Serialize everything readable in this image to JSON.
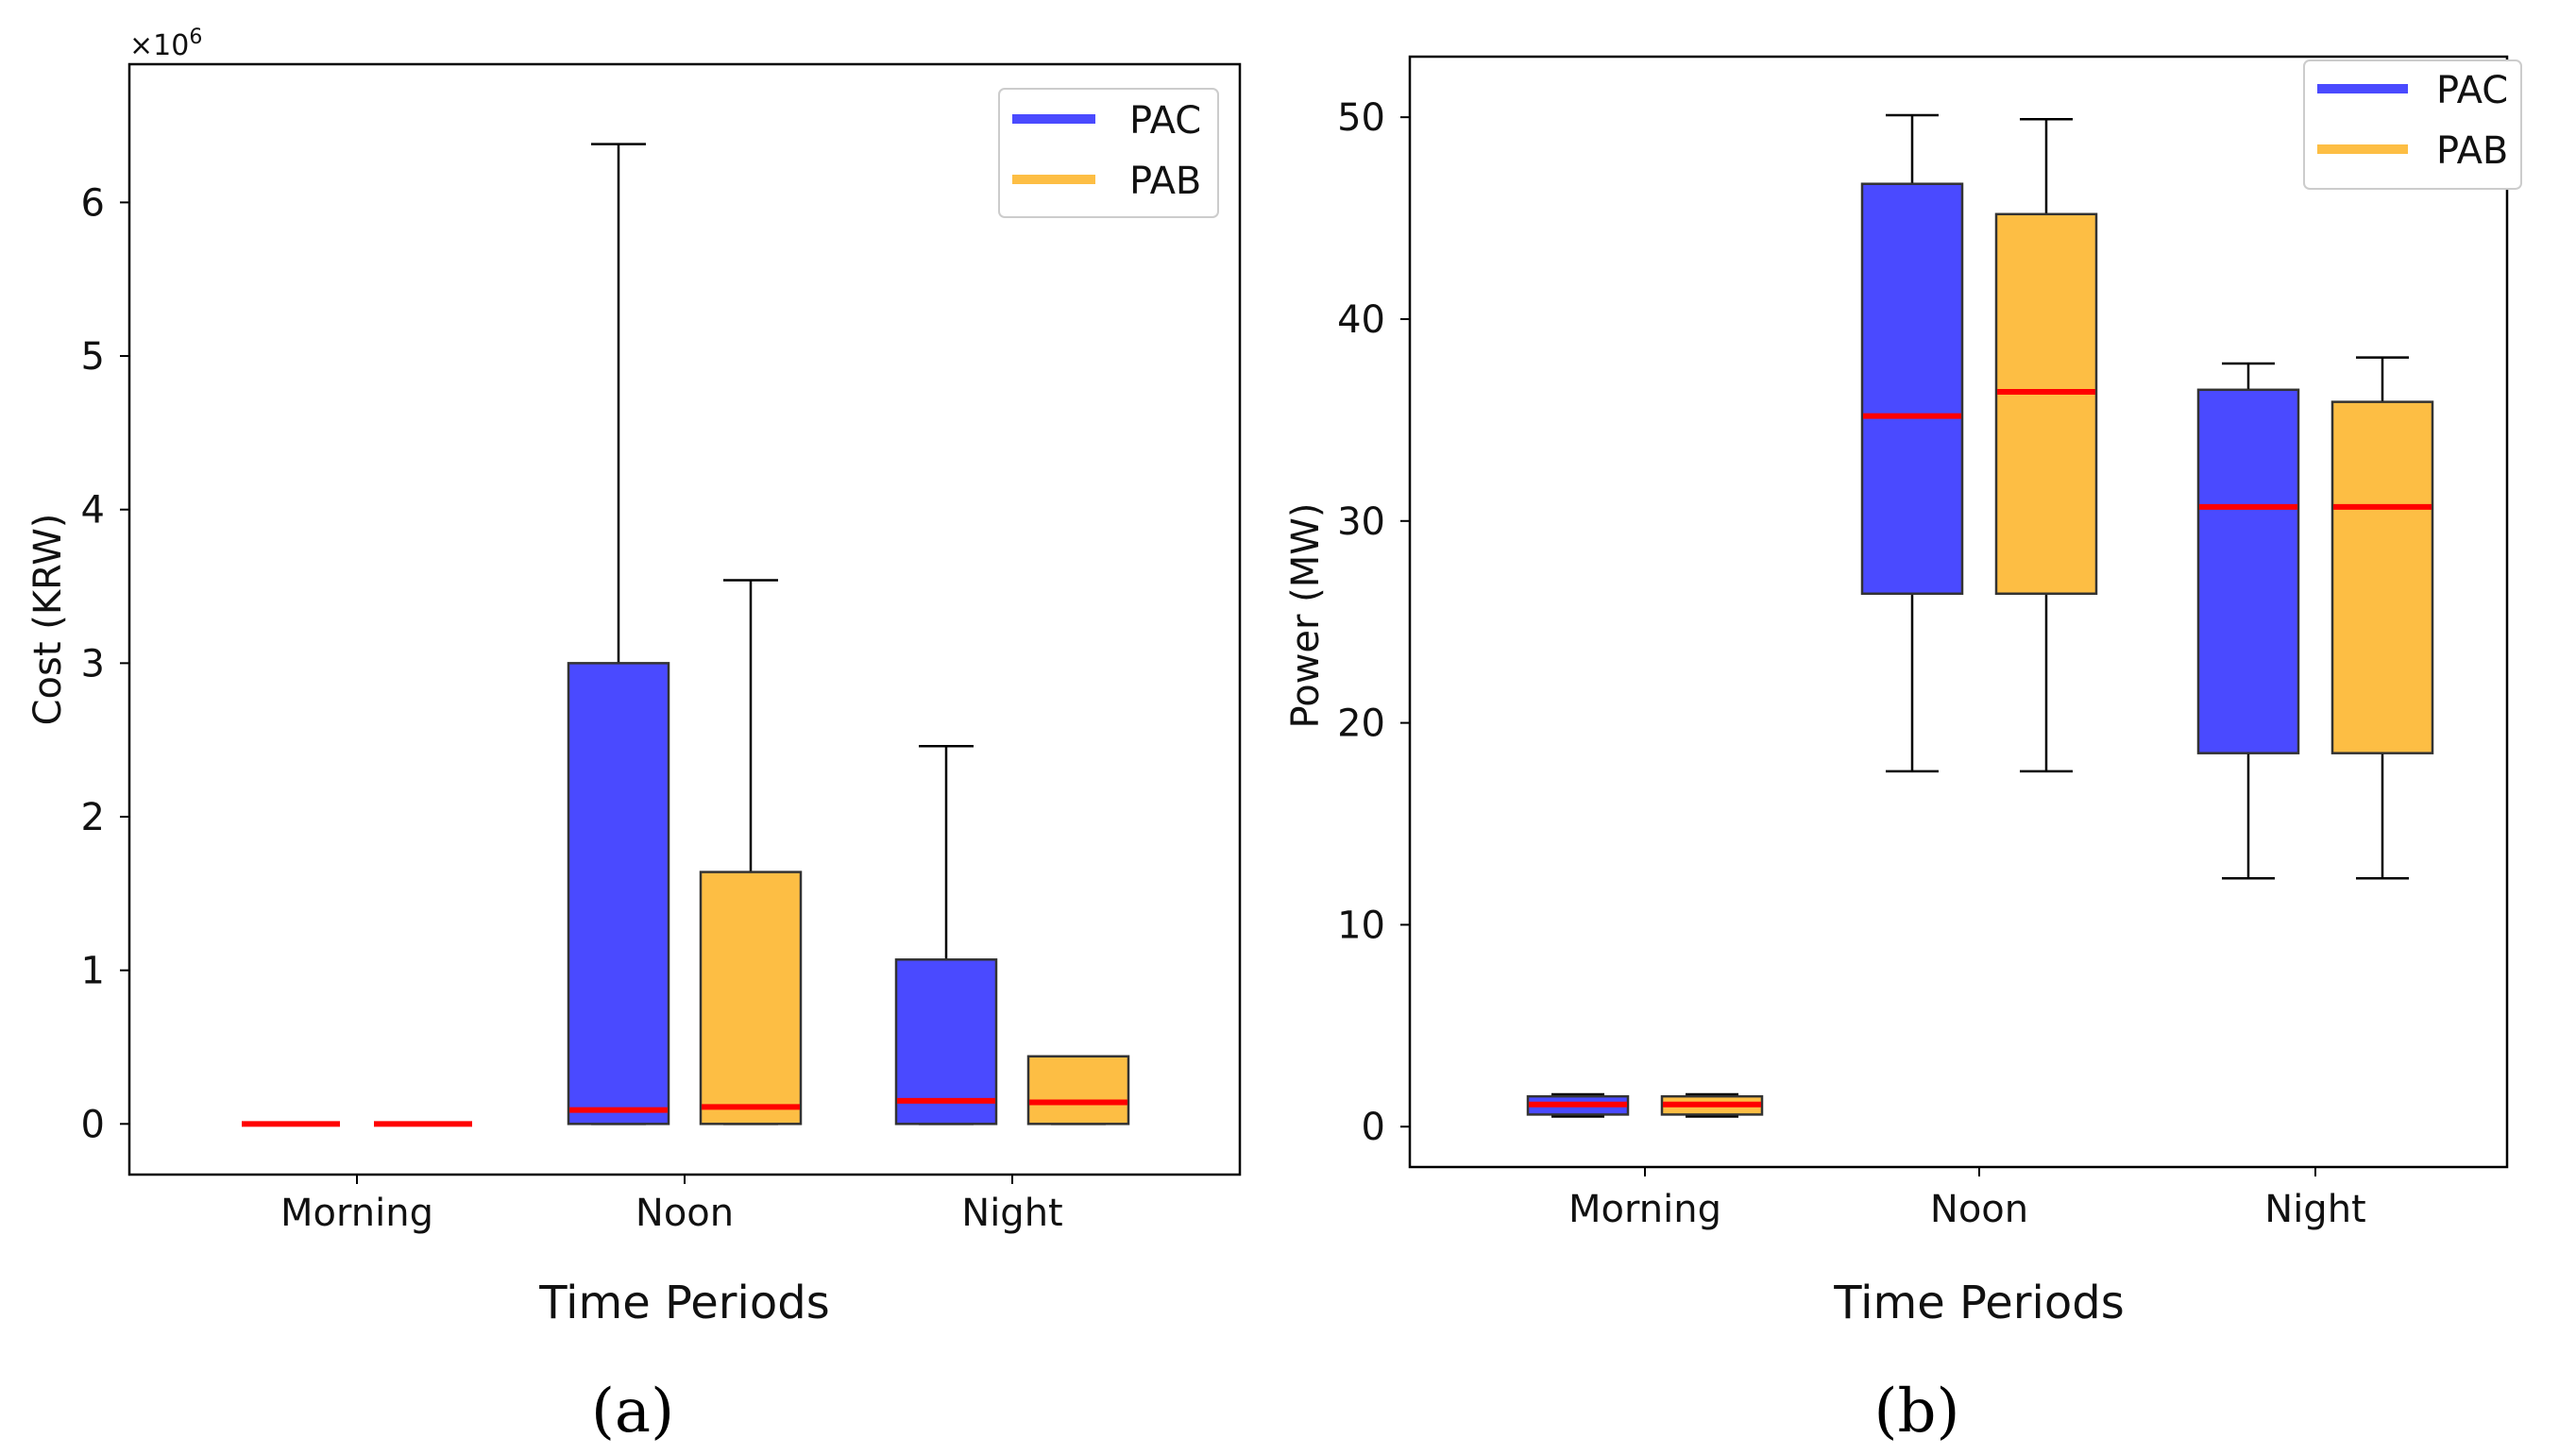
{
  "colors": {
    "PAC": "#4a4aff",
    "PAB": "#fdbe44",
    "median": "#ff0000",
    "edge": "#333333"
  },
  "chart_data": [
    {
      "type": "box",
      "caption": "(a)",
      "xlabel": "Time Periods",
      "ylabel": "Cost (KRW)",
      "y_offset_label": "×10",
      "y_offset_exponent": "6",
      "ylim": [
        -0.33,
        6.9
      ],
      "yticks": [
        0,
        1,
        2,
        3,
        4,
        5,
        6
      ],
      "categories": [
        "Morning",
        "Noon",
        "Night"
      ],
      "legend": {
        "position": "top-right",
        "entries": [
          "PAC",
          "PAB"
        ]
      },
      "series": [
        {
          "name": "PAC",
          "boxes": [
            {
              "category": "Morning",
              "whisker_low": 0,
              "q1": 0,
              "median": 0,
              "q3": 0,
              "whisker_high": 0
            },
            {
              "category": "Noon",
              "whisker_low": 0,
              "q1": 0,
              "median": 0.09,
              "q3": 3.0,
              "whisker_high": 6.38
            },
            {
              "category": "Night",
              "whisker_low": 0,
              "q1": 0,
              "median": 0.15,
              "q3": 1.07,
              "whisker_high": 2.46
            }
          ]
        },
        {
          "name": "PAB",
          "boxes": [
            {
              "category": "Morning",
              "whisker_low": 0,
              "q1": 0,
              "median": 0,
              "q3": 0,
              "whisker_high": 0
            },
            {
              "category": "Noon",
              "whisker_low": 0,
              "q1": 0,
              "median": 0.11,
              "q3": 1.64,
              "whisker_high": 3.54
            },
            {
              "category": "Night",
              "whisker_low": 0,
              "q1": 0,
              "median": 0.14,
              "q3": 0.44,
              "whisker_high": 0.44
            }
          ]
        }
      ]
    },
    {
      "type": "box",
      "caption": "(b)",
      "xlabel": "Time Periods",
      "ylabel": "Power (MW)",
      "ylim": [
        -2.0,
        53.0
      ],
      "yticks": [
        0,
        10,
        20,
        30,
        40,
        50
      ],
      "categories": [
        "Morning",
        "Noon",
        "Night"
      ],
      "legend": {
        "position": "top-right",
        "entries": [
          "PAC",
          "PAB"
        ]
      },
      "series": [
        {
          "name": "PAC",
          "boxes": [
            {
              "category": "Morning",
              "whisker_low": 0.5,
              "q1": 0.6,
              "median": 1.1,
              "q3": 1.5,
              "whisker_high": 1.6
            },
            {
              "category": "Noon",
              "whisker_low": 17.6,
              "q1": 26.4,
              "median": 35.2,
              "q3": 46.7,
              "whisker_high": 50.1
            },
            {
              "category": "Night",
              "whisker_low": 12.3,
              "q1": 18.5,
              "median": 30.7,
              "q3": 36.5,
              "whisker_high": 37.8
            }
          ]
        },
        {
          "name": "PAB",
          "boxes": [
            {
              "category": "Morning",
              "whisker_low": 0.5,
              "q1": 0.6,
              "median": 1.1,
              "q3": 1.5,
              "whisker_high": 1.6
            },
            {
              "category": "Noon",
              "whisker_low": 17.6,
              "q1": 26.4,
              "median": 36.4,
              "q3": 45.2,
              "whisker_high": 49.9
            },
            {
              "category": "Night",
              "whisker_low": 12.3,
              "q1": 18.5,
              "median": 30.7,
              "q3": 35.9,
              "whisker_high": 38.1
            }
          ]
        }
      ]
    }
  ]
}
